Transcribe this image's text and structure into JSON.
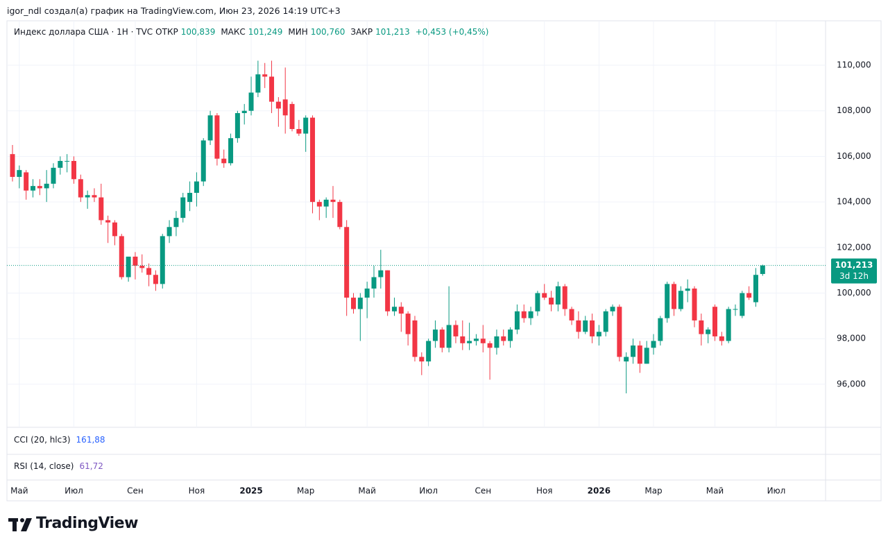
{
  "header": "igor_ndl создал(а) график на TradingView.com, Июн 23, 2026 14:19 UTC+3",
  "chart_data": {
    "type": "candlestick",
    "symbol": "Индекс доллара США · 1Н · TVC",
    "ohlc_legend": [
      {
        "label": "ОТКР",
        "value": "100,839"
      },
      {
        "label": "МАКС",
        "value": "101,249"
      },
      {
        "label": "МИН",
        "value": "100,760"
      },
      {
        "label": "ЗАКР",
        "value": "101,213"
      }
    ],
    "change": "+0,453 (+0,45%)",
    "up_color": "#089981",
    "down_color": "#f23645",
    "grid": true,
    "categories": [
      null,
      "Май",
      null,
      null,
      null,
      null,
      null,
      null,
      null,
      "Июл",
      null,
      null,
      null,
      null,
      null,
      null,
      null,
      null,
      "Сен",
      null,
      null,
      null,
      null,
      null,
      null,
      null,
      null,
      "Ноя",
      null,
      null,
      null,
      null,
      null,
      null,
      null,
      "2025",
      null,
      null,
      null,
      null,
      null,
      null,
      null,
      "Мар",
      null,
      null,
      null,
      null,
      null,
      null,
      null,
      null,
      "Май",
      null,
      null,
      null,
      null,
      null,
      null,
      null,
      null,
      "Июл",
      null,
      null,
      null,
      null,
      null,
      null,
      null,
      "Сен",
      null,
      null,
      null,
      null,
      null,
      null,
      null,
      null,
      "Ноя",
      null,
      null,
      null,
      null,
      null,
      null,
      null,
      "2026",
      null,
      null,
      null,
      null,
      null,
      null,
      null,
      "Мар",
      null,
      null,
      null,
      null,
      null,
      null,
      null,
      null,
      "Май",
      null,
      null,
      null,
      null,
      null,
      null,
      null,
      null,
      "Июл"
    ],
    "open": [
      106.1,
      105.1,
      105.3,
      104.5,
      104.7,
      104.6,
      104.8,
      105.5,
      105.8,
      105.8,
      105.0,
      104.2,
      104.3,
      104.2,
      103.2,
      103.1,
      102.5,
      100.7,
      101.6,
      101.2,
      101.1,
      100.8,
      100.4,
      102.5,
      102.9,
      103.3,
      104.0,
      104.4,
      104.9,
      106.7,
      107.8,
      105.9,
      105.7,
      106.8,
      107.9,
      108.0,
      108.8,
      109.6,
      109.5,
      108.4,
      108.5,
      108.3,
      107.2,
      107.0,
      107.7,
      104.0,
      103.8,
      104.1,
      104.0,
      102.9,
      99.8,
      99.3,
      99.8,
      100.2,
      100.7,
      101.0,
      99.2,
      99.4,
      99.1,
      98.8,
      97.2,
      97.0,
      97.9,
      98.4,
      97.6,
      98.6,
      98.1,
      97.8,
      97.9,
      98.0,
      97.8,
      97.6,
      98.1,
      97.9,
      98.4,
      99.2,
      98.9,
      99.2,
      100.0,
      99.8,
      99.5,
      100.3,
      99.3,
      98.8,
      98.3,
      98.8,
      98.1,
      98.3,
      99.2,
      99.4,
      97.0,
      97.2,
      97.7,
      96.9,
      97.6,
      97.9,
      98.9,
      100.4,
      99.3,
      100.1,
      100.2,
      98.8,
      98.2,
      99.4,
      98.1,
      97.9,
      99.3,
      99.0,
      100.0,
      99.6,
      100.839,
      null,
      null
    ],
    "high": [
      106.5,
      105.6,
      105.4,
      105.0,
      105.0,
      105.4,
      105.7,
      106.0,
      106.1,
      106.0,
      105.2,
      104.5,
      104.6,
      104.8,
      103.4,
      103.2,
      102.6,
      101.6,
      101.8,
      101.7,
      101.3,
      101.0,
      102.6,
      103.2,
      103.6,
      104.4,
      104.9,
      105.3,
      106.8,
      108.0,
      107.9,
      106.3,
      107.0,
      108.0,
      108.3,
      109.5,
      110.2,
      110.1,
      110.2,
      108.6,
      109.9,
      108.4,
      107.6,
      107.8,
      107.8,
      104.1,
      104.2,
      104.7,
      104.1,
      103.2,
      100.0,
      100.0,
      100.5,
      101.2,
      101.9,
      101.0,
      99.8,
      99.6,
      99.2,
      99.0,
      97.4,
      98.0,
      98.8,
      98.5,
      100.3,
      98.8,
      98.8,
      98.7,
      98.2,
      98.6,
      97.9,
      98.4,
      98.4,
      98.5,
      99.5,
      99.5,
      99.4,
      100.1,
      100.4,
      100.1,
      100.5,
      100.4,
      99.4,
      99.2,
      99.0,
      99.1,
      98.6,
      99.3,
      99.5,
      99.5,
      97.4,
      98.0,
      97.9,
      97.9,
      98.2,
      99.0,
      100.5,
      100.5,
      100.3,
      100.6,
      100.3,
      99.1,
      98.5,
      99.5,
      98.3,
      99.4,
      99.5,
      100.1,
      100.3,
      101.1,
      101.249,
      null,
      null
    ],
    "low": [
      104.9,
      104.6,
      104.1,
      104.2,
      104.3,
      104.0,
      104.6,
      105.2,
      105.3,
      104.8,
      104.0,
      103.7,
      104.0,
      103.0,
      102.2,
      102.1,
      100.6,
      100.5,
      100.6,
      100.9,
      100.3,
      100.1,
      100.2,
      102.2,
      102.5,
      103.1,
      103.6,
      103.8,
      104.7,
      106.5,
      105.6,
      105.5,
      105.6,
      106.6,
      107.4,
      107.8,
      108.6,
      109.0,
      107.9,
      107.3,
      107.0,
      107.1,
      106.9,
      106.2,
      103.5,
      103.2,
      103.3,
      103.3,
      102.8,
      99.0,
      99.1,
      97.9,
      98.9,
      99.8,
      100.2,
      99.0,
      99.0,
      98.3,
      97.7,
      97.0,
      96.4,
      96.8,
      97.6,
      97.4,
      97.4,
      97.8,
      97.5,
      97.5,
      97.7,
      97.4,
      96.2,
      97.3,
      97.7,
      97.6,
      98.2,
      98.7,
      98.6,
      99.0,
      99.7,
      99.2,
      99.2,
      99.0,
      98.6,
      98.0,
      98.2,
      97.8,
      97.7,
      98.1,
      99.0,
      97.0,
      95.6,
      96.9,
      96.5,
      96.9,
      97.3,
      97.7,
      98.7,
      99.0,
      99.2,
      99.6,
      98.5,
      97.7,
      97.8,
      97.9,
      97.7,
      97.8,
      99.0,
      98.9,
      99.7,
      99.4,
      100.76,
      null,
      null
    ],
    "close": [
      105.1,
      105.4,
      104.5,
      104.7,
      104.6,
      104.8,
      105.5,
      105.8,
      105.8,
      105.0,
      104.2,
      104.3,
      104.2,
      103.2,
      103.1,
      102.5,
      100.7,
      101.6,
      101.2,
      101.1,
      100.8,
      100.4,
      102.5,
      102.9,
      103.3,
      104.2,
      104.4,
      104.9,
      106.7,
      107.8,
      105.9,
      105.7,
      106.8,
      107.9,
      108.0,
      108.8,
      109.6,
      109.5,
      108.4,
      108.1,
      107.8,
      107.2,
      107.0,
      107.7,
      104.0,
      103.8,
      104.1,
      104.0,
      102.9,
      99.8,
      99.3,
      99.8,
      100.2,
      100.7,
      101.0,
      99.2,
      99.4,
      99.1,
      98.2,
      97.2,
      97.0,
      97.9,
      98.4,
      97.6,
      98.6,
      98.1,
      97.8,
      97.9,
      98.0,
      97.8,
      97.6,
      98.1,
      97.9,
      98.4,
      99.2,
      98.9,
      99.2,
      100.0,
      99.8,
      99.5,
      100.3,
      99.3,
      98.8,
      98.3,
      98.8,
      98.1,
      98.3,
      99.2,
      99.4,
      97.2,
      97.2,
      97.7,
      96.9,
      97.6,
      97.9,
      98.9,
      100.4,
      99.3,
      100.1,
      100.2,
      98.8,
      98.2,
      98.4,
      98.1,
      97.9,
      99.3,
      99.3,
      100.0,
      99.8,
      100.8,
      101.213,
      null,
      null
    ],
    "ylim": [
      94.11,
      111.95
    ],
    "yticks": [
      {
        "value": 96,
        "label": "96,000"
      },
      {
        "value": 98,
        "label": "98,000"
      },
      {
        "value": 100,
        "label": "100,000"
      },
      {
        "value": 102,
        "label": "102,000"
      },
      {
        "value": 104,
        "label": "104,000"
      },
      {
        "value": 106,
        "label": "106,000"
      },
      {
        "value": 108,
        "label": "108,000"
      },
      {
        "value": 110,
        "label": "110,000"
      }
    ],
    "last_price_label": "101,213",
    "countdown": "3d 12h"
  },
  "indicators": [
    {
      "name": "CCI (20, hlc3)",
      "value": "161,88"
    },
    {
      "name": "RSI (14, close)",
      "value": "61,72"
    }
  ],
  "footer": {
    "logo": "TradingView"
  }
}
